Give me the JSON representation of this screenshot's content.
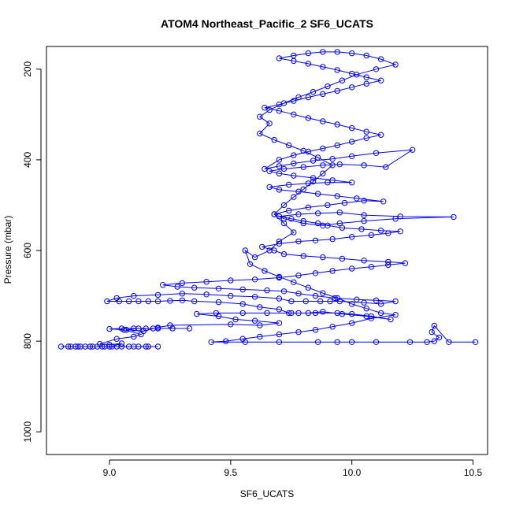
{
  "chart_data": {
    "type": "scatter",
    "title": "ATOM4 Northeast_Pacific_2 SF6_UCATS",
    "xlabel": "SF6_UCATS",
    "ylabel": "Pressure (mbar)",
    "xlim": [
      8.74,
      10.56
    ],
    "ylim": [
      1050,
      150
    ],
    "y_reversed": true,
    "xticks": [
      9.0,
      9.5,
      10.0,
      10.5
    ],
    "xtick_labels": [
      "9.0",
      "9.5",
      "10.0",
      "10.5"
    ],
    "yticks": [
      200,
      400,
      600,
      800,
      1000
    ],
    "ytick_labels": [
      "200",
      "400",
      "600",
      "800",
      "1000"
    ],
    "grid": false,
    "legend": "none",
    "marker": "open-circle",
    "connected": true,
    "color": "#0000ff",
    "series": [
      {
        "points": [
          [
            8.8,
            812
          ],
          [
            8.84,
            812
          ],
          [
            8.87,
            812
          ],
          [
            8.9,
            812
          ],
          [
            8.95,
            812
          ],
          [
            9.0,
            812
          ],
          [
            9.05,
            812
          ],
          [
            9.1,
            812
          ],
          [
            9.15,
            812
          ],
          [
            9.2,
            812
          ],
          [
            9.16,
            812
          ],
          [
            9.12,
            812
          ],
          [
            9.08,
            812
          ],
          [
            9.03,
            812
          ],
          [
            8.98,
            812
          ],
          [
            8.93,
            812
          ],
          [
            8.88,
            812
          ],
          [
            8.83,
            812
          ],
          [
            8.86,
            812
          ],
          [
            8.92,
            812
          ],
          [
            8.97,
            812
          ],
          [
            9.01,
            812
          ],
          [
            9.05,
            805
          ],
          [
            9.0,
            808
          ],
          [
            8.96,
            806
          ],
          [
            9.03,
            795
          ],
          [
            9.1,
            790
          ],
          [
            9.13,
            785
          ],
          [
            9.06,
            775
          ],
          [
            9.0,
            773
          ],
          [
            9.05,
            772
          ],
          [
            9.1,
            772
          ],
          [
            9.15,
            772
          ],
          [
            9.2,
            772
          ],
          [
            9.26,
            772
          ],
          [
            9.33,
            772
          ],
          [
            9.18,
            772
          ],
          [
            9.12,
            772
          ],
          [
            9.07,
            775
          ],
          [
            9.14,
            778
          ],
          [
            9.2,
            770
          ],
          [
            9.25,
            765
          ],
          [
            9.5,
            763
          ],
          [
            9.62,
            765
          ],
          [
            9.7,
            760
          ],
          [
            9.6,
            755
          ],
          [
            9.52,
            752
          ],
          [
            9.45,
            745
          ],
          [
            9.36,
            740
          ],
          [
            9.44,
            738
          ],
          [
            9.55,
            738
          ],
          [
            9.65,
            738
          ],
          [
            9.75,
            738
          ],
          [
            9.85,
            738
          ],
          [
            9.94,
            738
          ],
          [
            10.0,
            740
          ],
          [
            10.08,
            745
          ],
          [
            10.16,
            752
          ],
          [
            10.06,
            745
          ],
          [
            9.96,
            740
          ],
          [
            9.88,
            735
          ],
          [
            9.82,
            738
          ],
          [
            9.78,
            738
          ],
          [
            9.74,
            738
          ],
          [
            9.7,
            730
          ],
          [
            9.62,
            725
          ],
          [
            9.55,
            718
          ],
          [
            9.45,
            714
          ],
          [
            9.35,
            712
          ],
          [
            9.3,
            710
          ],
          [
            9.25,
            711
          ],
          [
            9.2,
            712
          ],
          [
            9.16,
            712
          ],
          [
            9.12,
            712
          ],
          [
            9.08,
            712
          ],
          [
            9.04,
            712
          ],
          [
            8.99,
            712
          ],
          [
            9.03,
            705
          ],
          [
            9.1,
            700
          ],
          [
            9.2,
            698
          ],
          [
            9.3,
            695
          ],
          [
            9.4,
            697
          ],
          [
            9.5,
            700
          ],
          [
            9.6,
            702
          ],
          [
            9.7,
            706
          ],
          [
            9.75,
            712
          ],
          [
            9.81,
            712
          ],
          [
            9.87,
            712
          ],
          [
            9.91,
            712
          ],
          [
            9.95,
            712
          ],
          [
            10.05,
            715
          ],
          [
            10.12,
            718
          ],
          [
            10.18,
            712
          ],
          [
            10.1,
            710
          ],
          [
            10.02,
            708
          ],
          [
            9.93,
            705
          ],
          [
            9.85,
            700
          ],
          [
            9.78,
            695
          ],
          [
            9.72,
            690
          ],
          [
            9.65,
            688
          ],
          [
            9.55,
            686
          ],
          [
            9.45,
            684
          ],
          [
            9.35,
            682
          ],
          [
            9.28,
            680
          ],
          [
            9.22,
            676
          ],
          [
            9.3,
            672
          ],
          [
            9.4,
            669
          ],
          [
            9.5,
            666
          ],
          [
            9.6,
            664
          ],
          [
            9.7,
            660
          ],
          [
            9.78,
            655
          ],
          [
            9.85,
            650
          ],
          [
            9.92,
            645
          ],
          [
            10.0,
            640
          ],
          [
            10.08,
            636
          ],
          [
            10.15,
            632
          ],
          [
            10.22,
            628
          ],
          [
            10.15,
            625
          ],
          [
            10.05,
            622
          ],
          [
            9.96,
            618
          ],
          [
            9.88,
            615
          ],
          [
            9.8,
            612
          ],
          [
            9.72,
            608
          ],
          [
            9.68,
            600
          ],
          [
            9.63,
            592
          ],
          [
            9.7,
            585
          ],
          [
            9.78,
            580
          ],
          [
            9.85,
            578
          ],
          [
            9.92,
            575
          ],
          [
            10.0,
            570
          ],
          [
            10.08,
            566
          ],
          [
            10.15,
            562
          ],
          [
            10.2,
            558
          ],
          [
            10.12,
            556
          ],
          [
            10.04,
            553
          ],
          [
            9.96,
            550
          ],
          [
            9.9,
            545
          ],
          [
            9.86,
            540
          ],
          [
            9.8,
            535
          ],
          [
            9.75,
            530
          ],
          [
            9.7,
            525
          ],
          [
            9.78,
            520
          ],
          [
            9.86,
            518
          ],
          [
            9.95,
            516
          ],
          [
            10.05,
            522
          ],
          [
            10.2,
            525
          ],
          [
            10.42,
            526
          ],
          [
            10.18,
            530
          ],
          [
            10.05,
            535
          ],
          [
            9.95,
            540
          ],
          [
            9.88,
            545
          ],
          [
            9.8,
            540
          ],
          [
            9.72,
            530
          ],
          [
            9.68,
            520
          ],
          [
            9.74,
            512
          ],
          [
            9.82,
            505
          ],
          [
            9.9,
            500
          ],
          [
            9.97,
            495
          ],
          [
            10.05,
            490
          ],
          [
            10.13,
            492
          ],
          [
            10.02,
            485
          ],
          [
            9.94,
            480
          ],
          [
            9.86,
            475
          ],
          [
            9.78,
            470
          ],
          [
            9.7,
            466
          ],
          [
            9.66,
            460
          ],
          [
            9.74,
            455
          ],
          [
            9.82,
            452
          ],
          [
            9.9,
            450
          ],
          [
            10.0,
            450
          ],
          [
            9.92,
            445
          ],
          [
            9.84,
            440
          ],
          [
            9.76,
            435
          ],
          [
            9.7,
            430
          ],
          [
            9.66,
            425
          ],
          [
            9.72,
            420
          ],
          [
            9.8,
            416
          ],
          [
            9.88,
            412
          ],
          [
            9.95,
            410
          ],
          [
            10.05,
            412
          ],
          [
            10.14,
            416
          ],
          [
            10.25,
            378
          ],
          [
            10.1,
            385
          ],
          [
            10.0,
            392
          ],
          [
            9.92,
            398
          ],
          [
            9.84,
            402
          ],
          [
            9.76,
            408
          ],
          [
            9.7,
            414
          ],
          [
            9.64,
            420
          ],
          [
            9.7,
            400
          ],
          [
            9.76,
            390
          ],
          [
            9.82,
            382
          ],
          [
            9.88,
            375
          ],
          [
            9.94,
            368
          ],
          [
            10.0,
            360
          ],
          [
            10.06,
            352
          ],
          [
            10.12,
            345
          ],
          [
            10.06,
            338
          ],
          [
            10.0,
            330
          ],
          [
            9.94,
            322
          ],
          [
            9.88,
            315
          ],
          [
            9.82,
            308
          ],
          [
            9.76,
            300
          ],
          [
            9.7,
            292
          ],
          [
            9.64,
            285
          ],
          [
            9.7,
            278
          ],
          [
            9.76,
            270
          ],
          [
            9.82,
            262
          ],
          [
            9.88,
            255
          ],
          [
            9.94,
            248
          ],
          [
            10.0,
            240
          ],
          [
            10.06,
            232
          ],
          [
            10.12,
            225
          ],
          [
            10.06,
            218
          ],
          [
            10.0,
            210
          ],
          [
            9.94,
            202
          ],
          [
            9.88,
            195
          ],
          [
            9.82,
            188
          ],
          [
            9.76,
            182
          ],
          [
            9.7,
            176
          ],
          [
            9.76,
            170
          ],
          [
            9.82,
            165
          ],
          [
            9.88,
            162
          ],
          [
            9.94,
            162
          ],
          [
            10.0,
            165
          ],
          [
            10.06,
            170
          ],
          [
            10.12,
            178
          ],
          [
            10.18,
            190
          ],
          [
            10.1,
            200
          ],
          [
            10.02,
            212
          ],
          [
            9.96,
            225
          ],
          [
            9.9,
            238
          ],
          [
            9.84,
            250
          ],
          [
            9.78,
            262
          ],
          [
            9.72,
            275
          ],
          [
            9.66,
            290
          ],
          [
            9.62,
            305
          ],
          [
            9.66,
            320
          ],
          [
            9.62,
            342
          ],
          [
            9.68,
            356
          ],
          [
            9.74,
            368
          ],
          [
            9.8,
            380
          ],
          [
            9.86,
            395
          ],
          [
            9.92,
            412
          ],
          [
            9.88,
            430
          ],
          [
            9.84,
            448
          ],
          [
            9.8,
            465
          ],
          [
            9.76,
            482
          ],
          [
            9.72,
            500
          ],
          [
            9.68,
            520
          ],
          [
            9.72,
            540
          ],
          [
            9.76,
            560
          ],
          [
            9.7,
            580
          ],
          [
            9.66,
            600
          ],
          [
            9.6,
            615
          ],
          [
            9.56,
            600
          ],
          [
            9.58,
            630
          ],
          [
            9.64,
            645
          ],
          [
            9.7,
            658
          ],
          [
            9.76,
            670
          ],
          [
            9.82,
            682
          ],
          [
            9.88,
            694
          ],
          [
            9.94,
            705
          ],
          [
            10.0,
            718
          ],
          [
            10.06,
            728
          ],
          [
            10.12,
            738
          ],
          [
            10.18,
            742
          ],
          [
            10.08,
            750
          ],
          [
            10.0,
            760
          ],
          [
            9.92,
            768
          ],
          [
            9.85,
            775
          ],
          [
            9.78,
            780
          ],
          [
            9.7,
            785
          ],
          [
            9.62,
            790
          ],
          [
            9.55,
            795
          ],
          [
            9.48,
            800
          ],
          [
            9.42,
            802
          ],
          [
            9.56,
            802
          ],
          [
            9.7,
            802
          ],
          [
            9.86,
            802
          ],
          [
            9.94,
            802
          ],
          [
            10.0,
            802
          ],
          [
            10.1,
            802
          ],
          [
            10.24,
            802
          ],
          [
            10.31,
            802
          ],
          [
            10.34,
            800
          ],
          [
            10.36,
            792
          ],
          [
            10.33,
            780
          ],
          [
            10.34,
            766
          ],
          [
            10.4,
            802
          ],
          [
            10.51,
            802
          ]
        ]
      }
    ]
  }
}
